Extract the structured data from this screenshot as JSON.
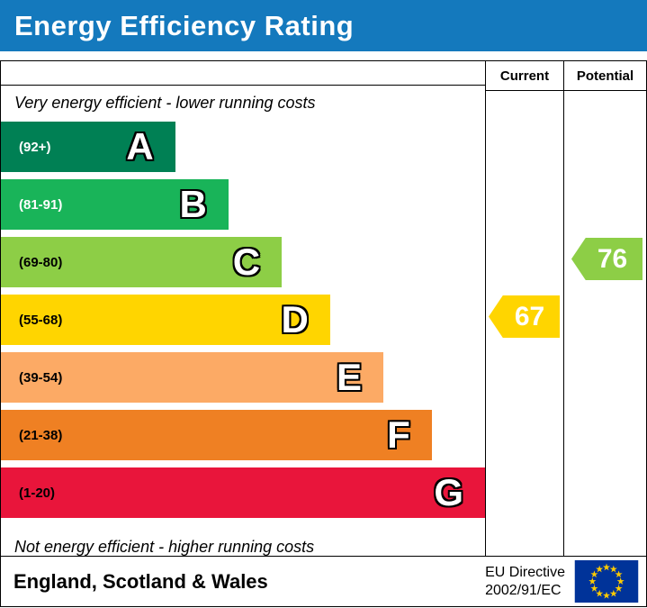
{
  "banner": {
    "title": "Energy Efficiency Rating",
    "bg_color": "#1479bd",
    "text_color": "#ffffff"
  },
  "table": {
    "columns": {
      "current": "Current",
      "potential": "Potential"
    },
    "top_note": "Very energy efficient - lower running costs",
    "bottom_note": "Not energy efficient - higher running costs",
    "bands": [
      {
        "letter": "A",
        "range": "(92+)",
        "color": "#008054",
        "width_pct": 36,
        "range_color": "#ffffff"
      },
      {
        "letter": "B",
        "range": "(81-91)",
        "color": "#19b459",
        "width_pct": 47,
        "range_color": "#ffffff"
      },
      {
        "letter": "C",
        "range": "(69-80)",
        "color": "#8dce46",
        "width_pct": 58,
        "range_color": "#000000"
      },
      {
        "letter": "D",
        "range": "(55-68)",
        "color": "#ffd500",
        "width_pct": 68,
        "range_color": "#000000"
      },
      {
        "letter": "E",
        "range": "(39-54)",
        "color": "#fcaa65",
        "width_pct": 79,
        "range_color": "#000000"
      },
      {
        "letter": "F",
        "range": "(21-38)",
        "color": "#ef8023",
        "width_pct": 89,
        "range_color": "#000000"
      },
      {
        "letter": "G",
        "range": "(1-20)",
        "color": "#e9153b",
        "width_pct": 100,
        "range_color": "#000000"
      }
    ],
    "current": {
      "value": "67",
      "band_letter": "D",
      "band_index": 3,
      "color": "#ffd500"
    },
    "potential": {
      "value": "76",
      "band_letter": "C",
      "band_index": 2,
      "color": "#8dce46"
    }
  },
  "footer": {
    "region": "England, Scotland & Wales",
    "directive_line1": "EU Directive",
    "directive_line2": "2002/91/EC",
    "flag": {
      "blue": "#003399",
      "yellow": "#ffcc00"
    }
  },
  "chart_data": {
    "type": "bar",
    "title": "Energy Efficiency Rating",
    "orientation": "horizontal",
    "categories": [
      "A",
      "B",
      "C",
      "D",
      "E",
      "F",
      "G"
    ],
    "score_ranges": [
      "92+",
      "81-91",
      "69-80",
      "55-68",
      "39-54",
      "21-38",
      "1-20"
    ],
    "relative_bar_widths_pct": [
      36,
      47,
      58,
      68,
      79,
      89,
      100
    ],
    "band_colors": [
      "#008054",
      "#19b459",
      "#8dce46",
      "#ffd500",
      "#fcaa65",
      "#ef8023",
      "#e9153b"
    ],
    "markers": [
      {
        "name": "Current",
        "value": 67,
        "band": "D"
      },
      {
        "name": "Potential",
        "value": 76,
        "band": "C"
      }
    ],
    "annotations": [
      "Very energy efficient - lower running costs",
      "Not energy efficient - higher running costs"
    ],
    "footnote": "England, Scotland & Wales — EU Directive 2002/91/EC"
  }
}
